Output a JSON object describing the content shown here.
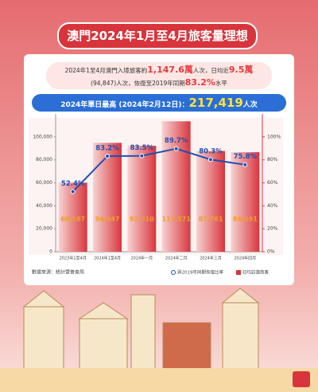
{
  "header": {
    "title": "澳門2024年1月至4月旅客量理想"
  },
  "info": [
    "2024年1至4月澳門入境旅客約",
    "1,147.6萬",
    "人次，日均近",
    "9.5萬",
    "(94,847)人次，恢復至2019年同期",
    "83.2%",
    "水平"
  ],
  "record": [
    "2024年單日最高 (2024年2月12日)：",
    "217,419",
    "人次"
  ],
  "chart_data": {
    "type": "bar",
    "categories": [
      "2023年1至4月",
      "2024年1至4月",
      "2024年一月",
      "2024年二月",
      "2024年三月",
      "2024年四月"
    ],
    "series": [
      {
        "name": "日均訪澳旅客",
        "color": "#d9363e",
        "values": [
          60187,
          94847,
          92310,
          113571,
          87761,
          86691
        ],
        "value_labels": [
          "60,187",
          "94,847",
          "92,310",
          "113,571",
          "87,761",
          "86,691"
        ]
      },
      {
        "name": "與2019年同期恢復比率",
        "color": "#1f4fb5",
        "axis": "y2",
        "type": "line",
        "values": [
          52.4,
          83.2,
          83.5,
          89.7,
          80.3,
          75.8
        ],
        "value_labels": [
          "52.4%",
          "83.2%",
          "83.5%",
          "89.7%",
          "80.3%",
          "75.8%"
        ]
      }
    ],
    "ylim": [
      0,
      120000
    ],
    "yticks": [
      0,
      {
        "value": 20000,
        "label": "20,000"
      },
      {
        "value": 40000,
        "label": "40,000"
      },
      {
        "value": 60000,
        "label": "60,000"
      },
      {
        "value": 80000,
        "label": "80,000"
      },
      {
        "value": 100000,
        "label": "100,000"
      }
    ],
    "y2lim": [
      0,
      120
    ],
    "y2ticks": [
      {
        "value": 0,
        "label": "0%"
      },
      {
        "value": 20,
        "label": "20%"
      },
      {
        "value": 40,
        "label": "40%"
      },
      {
        "value": 60,
        "label": "60%"
      },
      {
        "value": 80,
        "label": "80%"
      },
      {
        "value": 100,
        "label": "100%"
      }
    ],
    "source": "數據來源：統計暨普查局"
  }
}
